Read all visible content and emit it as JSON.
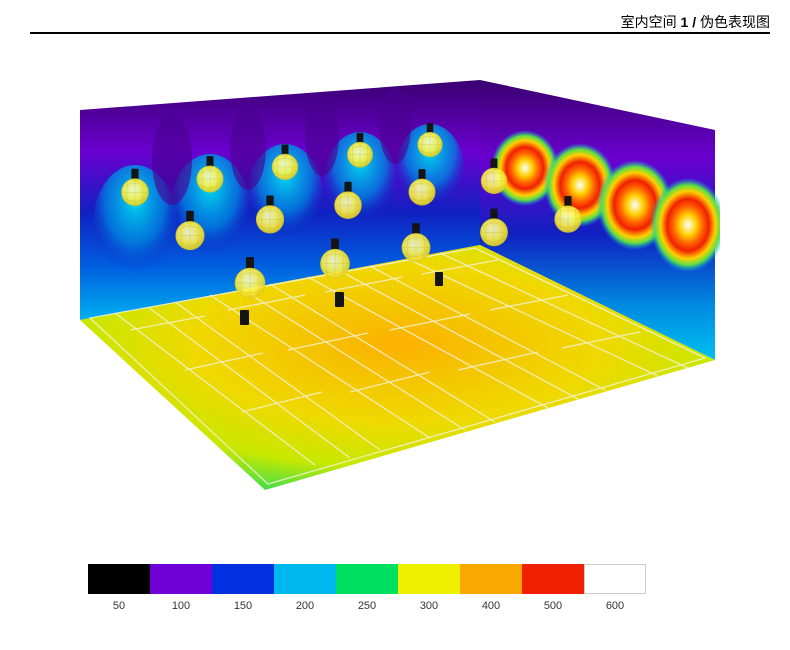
{
  "header": {
    "title_prefix": "室内空间 ",
    "title_bold": "1 / ",
    "title_suffix": "伪色表现图"
  },
  "diagram": {
    "type": "heatmap",
    "description": "Indoor sports hall false-color illuminance simulation (3D isometric) with badminton courts and pendant luminaires",
    "luminaires_rows": 4,
    "luminaires_per_row": 5,
    "courts": 4,
    "floor_colors": {
      "center": "#f5b200",
      "mid": "#f0e000",
      "edge": "#55e040",
      "corner": "#00d070"
    },
    "left_wall_gradient": [
      "#3a0070",
      "#6a00d0",
      "#1020c0",
      "#0060e0",
      "#00b0f0"
    ],
    "right_wall_gradient": [
      "#3a0070",
      "#6a00d0",
      "#1020c0",
      "#00a0f0",
      "#00e050",
      "#ffd000",
      "#ff3000",
      "#ffffff"
    ],
    "luminaire_sphere_color": "#fff44a",
    "luminaire_mount_color": "#141414",
    "background_color": "#ffffff",
    "line_color": "#f4f4e0",
    "label_fontsize": 11
  },
  "legend": {
    "items": [
      {
        "color": "#000000",
        "label": "50"
      },
      {
        "color": "#7000d8",
        "label": "100"
      },
      {
        "color": "#0030e0",
        "label": "150"
      },
      {
        "color": "#00b8f0",
        "label": "200"
      },
      {
        "color": "#00e060",
        "label": "250"
      },
      {
        "color": "#eef000",
        "label": "300"
      },
      {
        "color": "#f8a800",
        "label": "400"
      },
      {
        "color": "#f02000",
        "label": "500"
      },
      {
        "color": "#ffffff",
        "label": "600"
      }
    ]
  }
}
